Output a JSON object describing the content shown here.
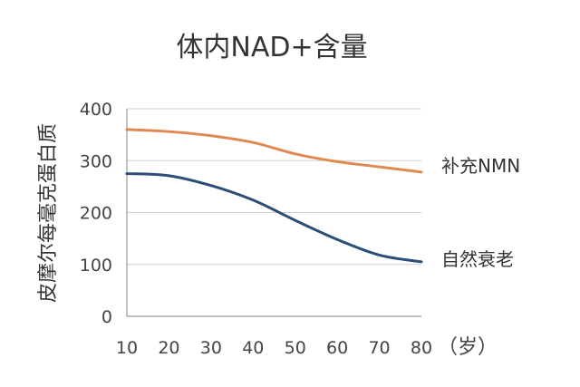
{
  "chart_data": {
    "type": "line",
    "title": "体内NAD+含量",
    "ylabel": "皮摩尔每毫克蛋白质",
    "x_unit_label": "（岁）",
    "x": [
      10,
      20,
      30,
      40,
      50,
      60,
      70,
      80
    ],
    "xlim": [
      10,
      80
    ],
    "ylim": [
      0,
      400
    ],
    "yticks": [
      0,
      100,
      200,
      300,
      400
    ],
    "grid": true,
    "series": [
      {
        "name": "补充NMN",
        "color": "#e08a52",
        "values": [
          360,
          356,
          348,
          335,
          313,
          298,
          288,
          278
        ]
      },
      {
        "name": "自然衰老",
        "color": "#2a4e7a",
        "values": [
          275,
          271,
          252,
          224,
          185,
          148,
          118,
          105
        ]
      }
    ]
  }
}
